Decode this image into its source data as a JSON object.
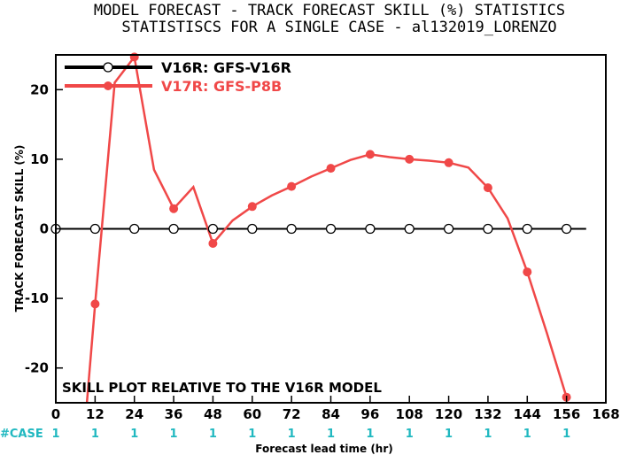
{
  "chart_data": {
    "type": "line",
    "title": "MODEL FORECAST - TRACK FORECAST SKILL (%) STATISTICS",
    "subtitle": "STATISTISCS FOR A SINGLE CASE - al132019_LORENZO",
    "xlabel": "Forecast lead time (hr)",
    "ylabel": "TRACK FORECAST SKILL (%)",
    "xlim": [
      0,
      168
    ],
    "ylim": [
      -25,
      25
    ],
    "x_ticks": [
      0,
      12,
      24,
      36,
      48,
      60,
      72,
      84,
      96,
      108,
      120,
      132,
      144,
      156,
      168
    ],
    "y_ticks": [
      -20,
      -10,
      0,
      10,
      20
    ],
    "annotation": "SKILL PLOT RELATIVE TO THE V16R MODEL",
    "case_label": "#CASE",
    "case_values": [
      {
        "x": 0,
        "label": "1"
      },
      {
        "x": 12,
        "label": "1"
      },
      {
        "x": 24,
        "label": "1"
      },
      {
        "x": 36,
        "label": "1"
      },
      {
        "x": 48,
        "label": "1"
      },
      {
        "x": 60,
        "label": "1"
      },
      {
        "x": 72,
        "label": "1"
      },
      {
        "x": 84,
        "label": "1"
      },
      {
        "x": 96,
        "label": "1"
      },
      {
        "x": 108,
        "label": "1"
      },
      {
        "x": 120,
        "label": "1"
      },
      {
        "x": 132,
        "label": "1"
      },
      {
        "x": 144,
        "label": "1"
      },
      {
        "x": 156,
        "label": "1"
      }
    ],
    "grid": false,
    "legend_position": "top-left",
    "series": [
      {
        "name": "V16R: GFS-V16R",
        "color": "#000000",
        "marker": "open-circle",
        "line_x": [
          0,
          162
        ],
        "line_y": [
          0,
          0
        ],
        "marker_x": [
          0,
          12,
          24,
          36,
          48,
          60,
          72,
          84,
          96,
          108,
          120,
          132,
          144,
          156
        ],
        "marker_y": [
          0,
          0,
          0,
          0,
          0,
          0,
          0,
          0,
          0,
          0,
          0,
          0,
          0,
          0
        ]
      },
      {
        "name": "V17R: GFS-P8B",
        "color": "#f04848",
        "marker": "filled-circle",
        "line_x": [
          9.5,
          12,
          18,
          24,
          30,
          36,
          42,
          48,
          54,
          60,
          66,
          72,
          78,
          84,
          90,
          96,
          102,
          108,
          114,
          120,
          126,
          132,
          138,
          144,
          150,
          156
        ],
        "line_y": [
          -25,
          -10.8,
          21.0,
          24.7,
          8.5,
          2.9,
          6.0,
          -2.1,
          1.2,
          3.2,
          4.8,
          6.1,
          7.5,
          8.7,
          9.9,
          10.7,
          10.3,
          10.0,
          9.8,
          9.5,
          8.8,
          5.9,
          1.5,
          -6.2,
          -15.0,
          -24.2
        ],
        "marker_x": [
          12,
          24,
          36,
          48,
          60,
          72,
          84,
          96,
          108,
          120,
          132,
          144,
          156
        ],
        "marker_y": [
          -10.8,
          24.7,
          2.9,
          -2.1,
          3.2,
          6.1,
          8.7,
          10.7,
          10.0,
          9.5,
          5.9,
          -6.2,
          -24.2
        ]
      }
    ]
  },
  "colors": {
    "case_color": "#20b8c0",
    "axis_color": "#000000"
  }
}
